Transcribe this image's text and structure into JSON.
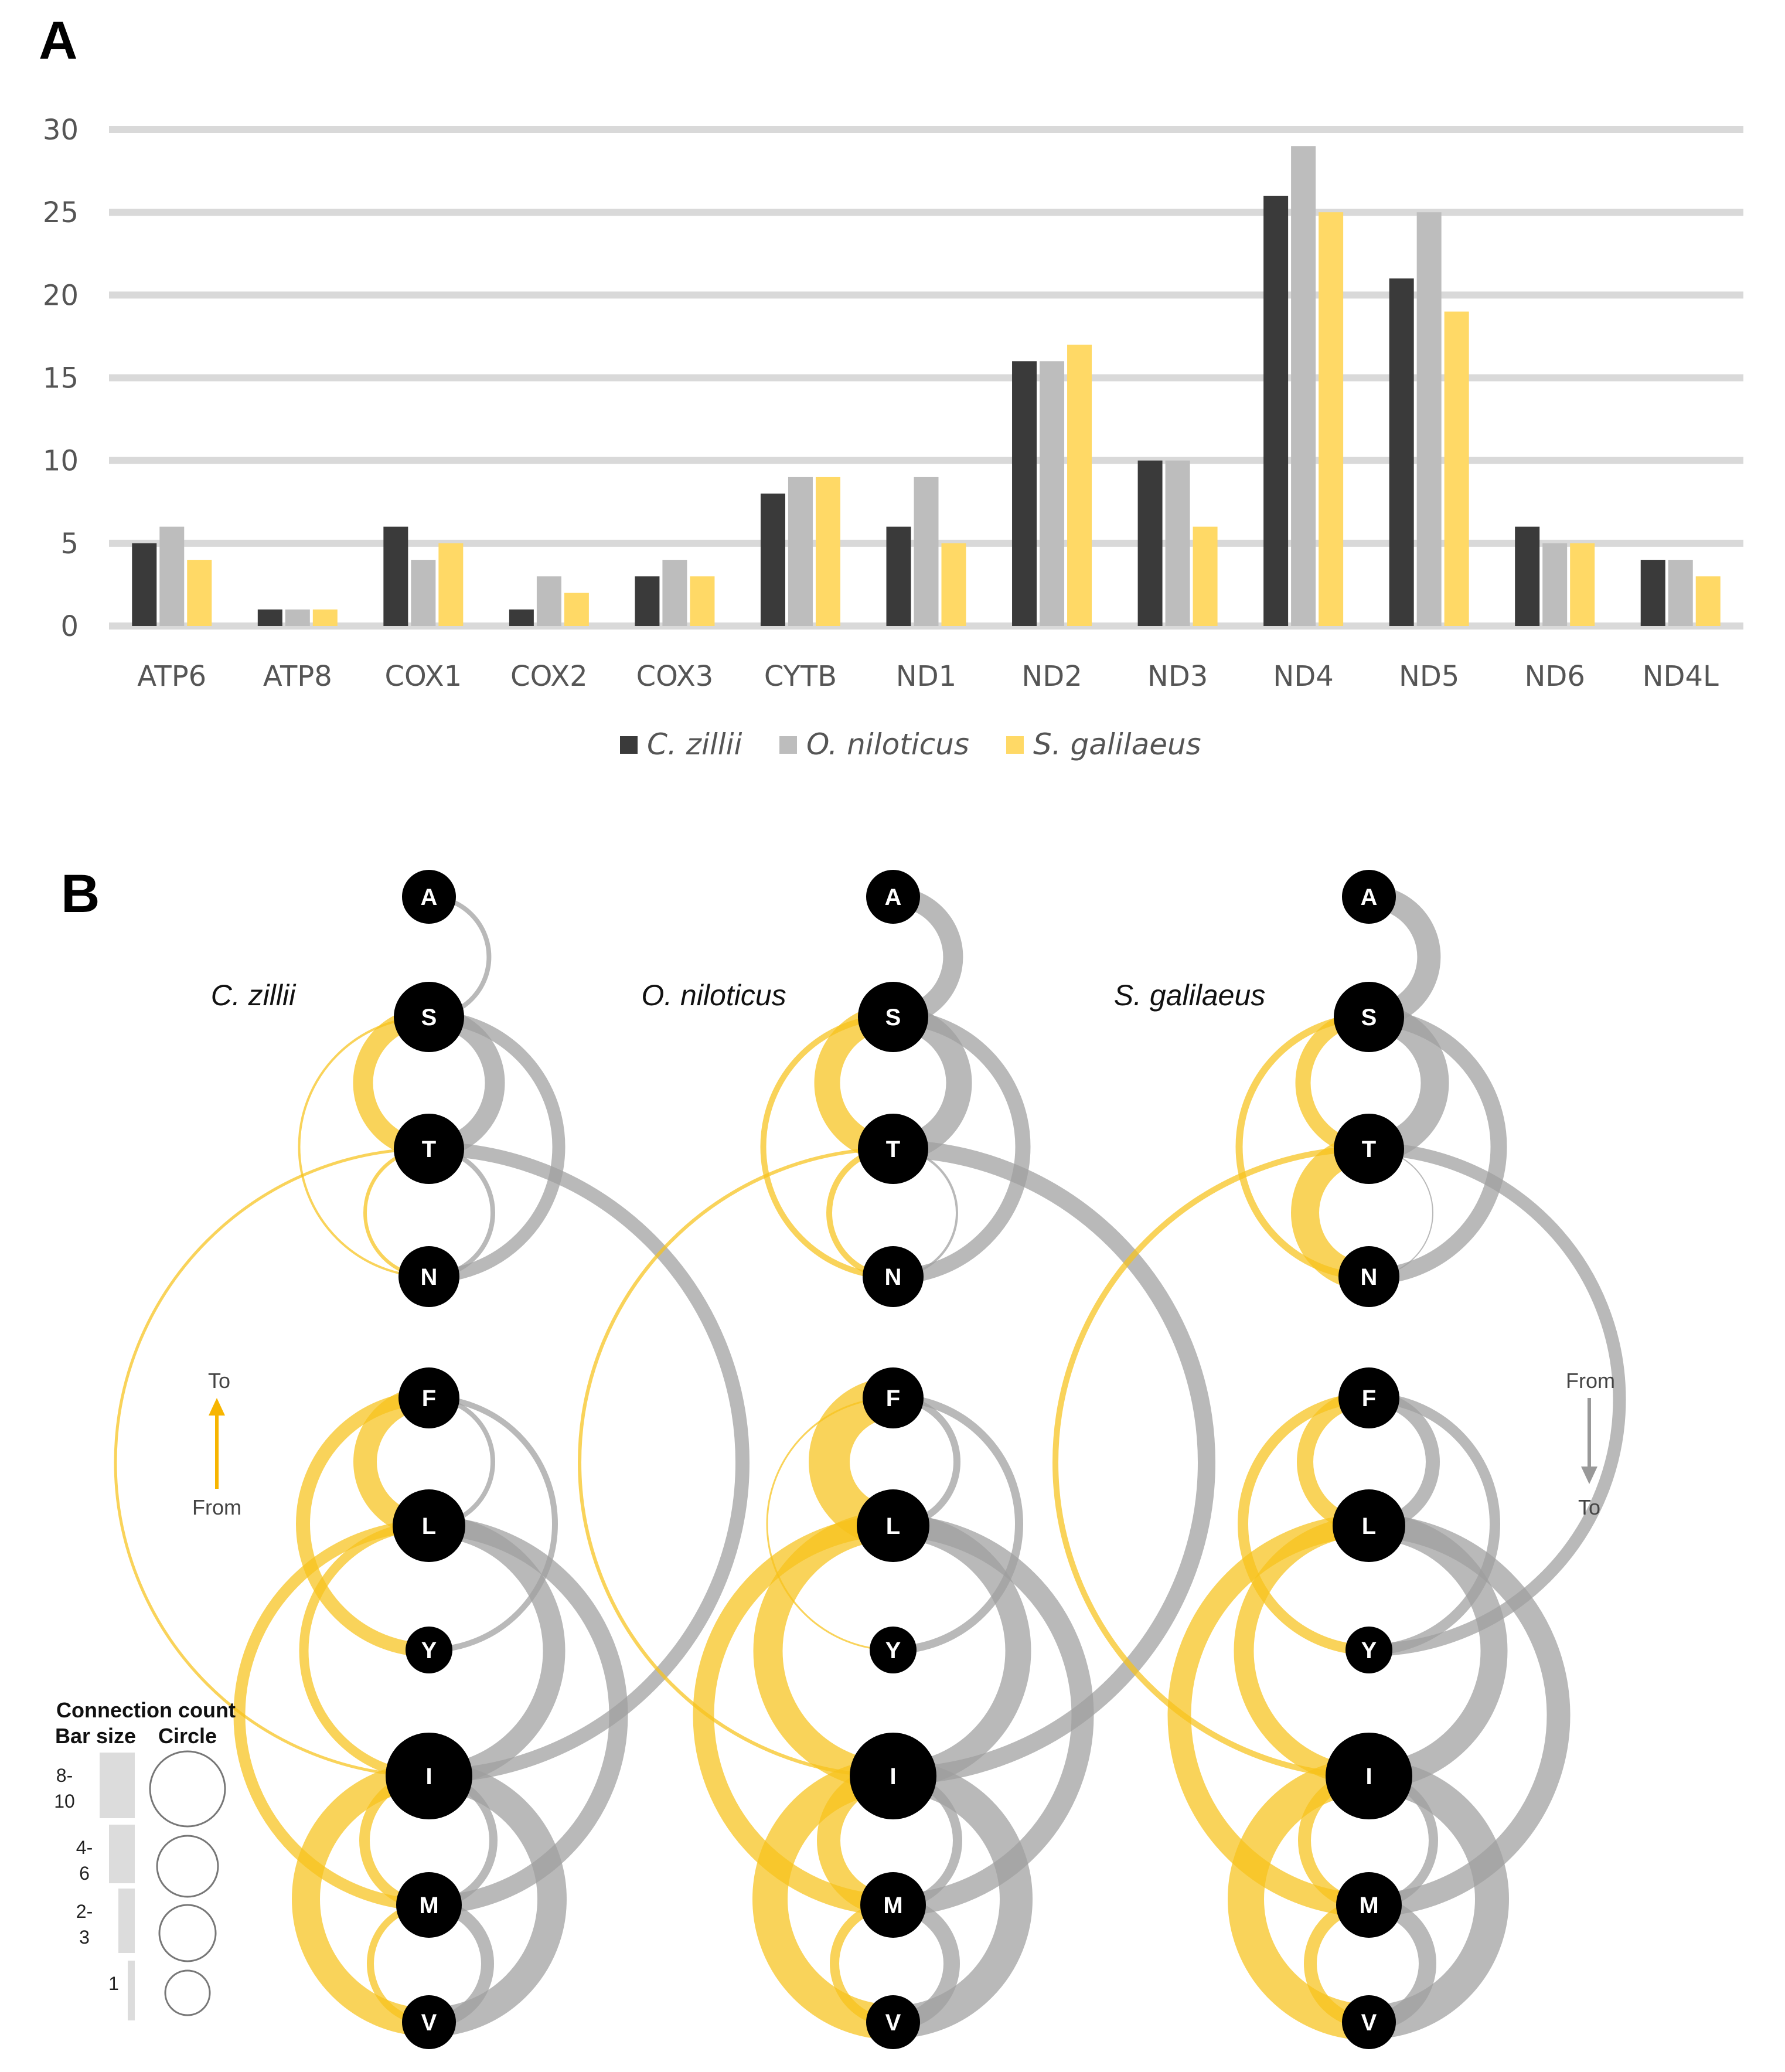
{
  "colors": {
    "c_zillii": "#3a3a3a",
    "o_niloticus": "#bdbdbd",
    "s_galilaeus": "#ffd966",
    "grid": "#d9d9d9",
    "arc_yellow": "#f7c21a",
    "arc_gray": "#9e9e9e"
  },
  "panel_a": {
    "letter": "A"
  },
  "chart_data": {
    "type": "bar",
    "categories": [
      "ATP6",
      "ATP8",
      "COX1",
      "COX2",
      "COX3",
      "CYTB",
      "ND1",
      "ND2",
      "ND3",
      "ND4",
      "ND5",
      "ND6",
      "ND4L"
    ],
    "series": [
      {
        "name": "C. zillii",
        "values": [
          5,
          1,
          6,
          1,
          3,
          8,
          6,
          16,
          10,
          26,
          21,
          6,
          4
        ]
      },
      {
        "name": "O. niloticus",
        "values": [
          6,
          1,
          4,
          3,
          4,
          9,
          9,
          16,
          10,
          29,
          25,
          5,
          4
        ]
      },
      {
        "name": "S. galilaeus",
        "values": [
          4,
          1,
          5,
          2,
          3,
          9,
          5,
          17,
          6,
          25,
          19,
          5,
          3
        ]
      }
    ],
    "yticks": [
      "0",
      "5",
      "10",
      "15",
      "20",
      "25",
      "30"
    ],
    "ylim": [
      0,
      30
    ],
    "title": "",
    "xlabel": "",
    "ylabel": "",
    "legend_position": "bottom"
  },
  "panel_b": {
    "letter": "B",
    "nodes": [
      "A",
      "S",
      "T",
      "N",
      "F",
      "L",
      "Y",
      "I",
      "M",
      "V"
    ],
    "species": [
      "C. zillii",
      "O. niloticus",
      "S. galilaeus"
    ],
    "left_direction": {
      "top": "To",
      "bottom": "From"
    },
    "right_direction": {
      "top": "From",
      "bottom": "To"
    },
    "connection_count": {
      "title": "Connection count",
      "bar_header": "Bar size",
      "circle_header": "Circle",
      "levels": [
        "8-\n10",
        "4-\n6",
        "2-\n3",
        "1"
      ]
    }
  }
}
